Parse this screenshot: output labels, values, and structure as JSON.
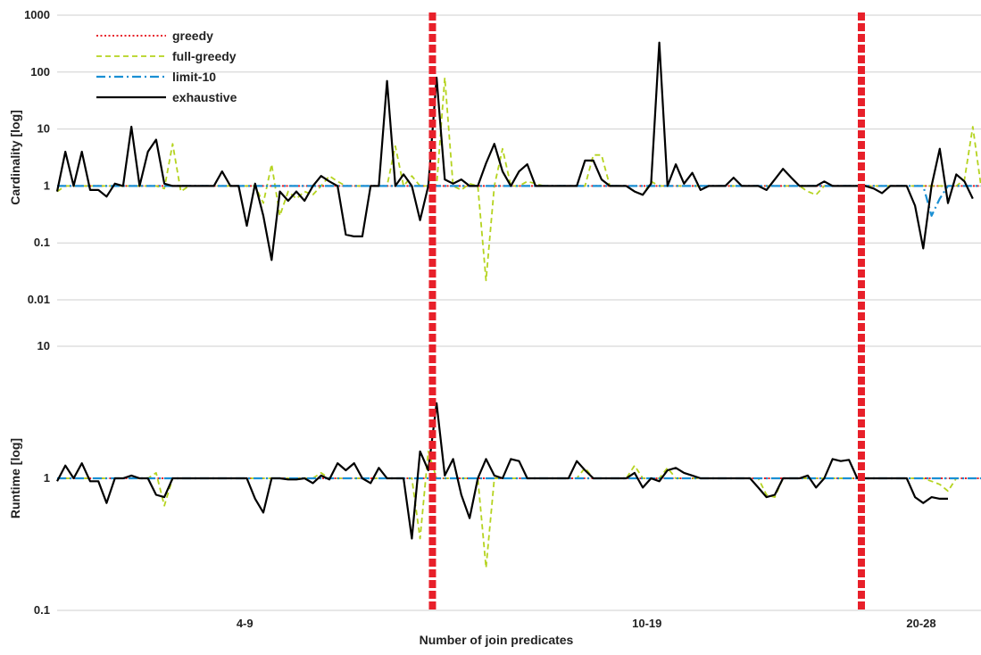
{
  "chart_data": {
    "type": "line",
    "xlabel": "Number of join predicates",
    "group_labels": [
      "4-9",
      "10-19",
      "20-28"
    ],
    "legend": [
      {
        "name": "greedy",
        "color": "#e8202a",
        "style": "dotted"
      },
      {
        "name": "full-greedy",
        "color": "#b5d31f",
        "style": "dashed"
      },
      {
        "name": "limit-10",
        "color": "#1a8fd3",
        "style": "dash-dot"
      },
      {
        "name": "exhaustive",
        "color": "#000000",
        "style": "solid"
      }
    ],
    "x_range": [
      0,
      112
    ],
    "separators_x": [
      45.5,
      97.5
    ],
    "separator_color": "#e8202a",
    "panels": [
      {
        "ylabel": "Cardinality [log]",
        "scale": "log",
        "ylim": [
          0.01,
          1000
        ],
        "yticks": [
          "0.01",
          "0.1",
          "1",
          "10",
          "100",
          "1000"
        ],
        "series": [
          {
            "name": "greedy",
            "values": [
              1,
              1,
              1,
              1,
              1,
              1,
              1,
              1,
              1,
              1,
              1,
              1,
              1,
              1,
              1,
              1,
              1,
              1,
              1,
              1,
              1,
              1,
              1,
              1,
              1,
              1,
              1,
              1,
              1,
              1,
              1,
              1,
              1,
              1,
              1,
              1,
              1,
              1,
              1,
              1,
              1,
              1,
              1,
              1,
              1,
              1,
              1,
              1,
              1,
              1,
              1,
              1,
              1,
              1,
              1,
              1,
              1,
              1,
              1,
              1,
              1,
              1,
              1,
              1,
              1,
              1,
              1,
              1,
              1,
              1,
              1,
              1,
              1,
              1,
              1,
              1,
              1,
              1,
              1,
              1,
              1,
              1,
              1,
              1,
              1,
              1,
              1,
              1,
              1,
              1,
              1,
              1,
              1,
              1,
              1,
              1,
              1,
              1,
              1,
              1,
              1,
              1,
              1,
              1,
              1,
              1,
              1,
              1,
              1,
              1,
              1,
              1,
              1
            ]
          },
          {
            "name": "full-greedy",
            "values": [
              0.8,
              1,
              1,
              1,
              1,
              1,
              1,
              1,
              1,
              1,
              1,
              1,
              1,
              0.9,
              5.5,
              0.8,
              1,
              1,
              1,
              1,
              1,
              1,
              1,
              1,
              1,
              0.5,
              2.4,
              0.3,
              0.8,
              0.6,
              0.8,
              0.7,
              1,
              1.5,
              1.2,
              1,
              1,
              1,
              1,
              1,
              1,
              5,
              1,
              1.5,
              1,
              1,
              1,
              80,
              1,
              0.85,
              1.1,
              1,
              0.022,
              1,
              4.5,
              1,
              1,
              1.2,
              1.1,
              1,
              1,
              1,
              1,
              1,
              1,
              3.5,
              3.5,
              1,
              1,
              1,
              0.8,
              0.7,
              1.2,
              1,
              1,
              1,
              1,
              1,
              1,
              1,
              1,
              1,
              1,
              1,
              1,
              1,
              1,
              1,
              1,
              1,
              1,
              0.8,
              0.7,
              1,
              1,
              1,
              1,
              1,
              1,
              1,
              1,
              1,
              1,
              1,
              1,
              1,
              1,
              1,
              1,
              1,
              1.3,
              11,
              1,
              1
            ]
          },
          {
            "name": "limit-10",
            "values": [
              1,
              1,
              1,
              1,
              1,
              1,
              1,
              1,
              1,
              1,
              1,
              1,
              1,
              1,
              1,
              1,
              1,
              1,
              1,
              1,
              1,
              1,
              1,
              1,
              1,
              1,
              1,
              1,
              1,
              1,
              1,
              1,
              1,
              1,
              1,
              1,
              1,
              1,
              1,
              1,
              1,
              1,
              1,
              1,
              1,
              1,
              1,
              1,
              1,
              1,
              1,
              1,
              1,
              1,
              1,
              1,
              1,
              1,
              1,
              1,
              1,
              1,
              1,
              1,
              1,
              1,
              1,
              1,
              1,
              1,
              1,
              1,
              1,
              1,
              1,
              1,
              1,
              1,
              1,
              1,
              1,
              1,
              1,
              1,
              1,
              1,
              1,
              1,
              1,
              1,
              1,
              1,
              1,
              1,
              1,
              1,
              1,
              1,
              1,
              1,
              1,
              1,
              1,
              1,
              1,
              1,
              0.3,
              0.6,
              1,
              1,
              1,
              1,
              1
            ]
          },
          {
            "name": "exhaustive",
            "values": [
              0.8,
              4,
              1,
              4,
              0.85,
              0.85,
              0.65,
              1.1,
              1,
              11,
              1,
              4,
              6.5,
              1.1,
              1,
              1,
              1,
              1,
              1,
              1,
              1.8,
              1,
              1,
              0.2,
              1.1,
              0.3,
              0.05,
              0.8,
              0.55,
              0.8,
              0.55,
              1,
              1.5,
              1.2,
              1,
              0.14,
              0.13,
              0.13,
              1,
              1,
              70,
              1,
              1.6,
              1,
              0.25,
              1,
              80,
              1.3,
              1.1,
              1.3,
              1,
              1,
              2.5,
              5.5,
              1.8,
              1,
              1.8,
              2.4,
              1,
              1,
              1,
              1,
              1,
              1,
              2.8,
              2.8,
              1.3,
              1,
              1,
              1,
              0.8,
              0.7,
              1.1,
              330,
              1,
              2.4,
              1.1,
              1.7,
              0.85,
              1,
              1,
              1,
              1.4,
              1,
              1,
              1,
              0.85,
              1.3,
              2,
              1.4,
              1,
              1,
              1,
              1.2,
              1,
              1,
              1,
              1,
              1,
              0.9,
              0.75,
              1,
              1,
              1,
              0.45,
              0.08,
              1,
              4.5,
              0.5,
              1.6,
              1.2,
              0.6
            ]
          }
        ]
      },
      {
        "ylabel": "Runtime [log]",
        "scale": "log",
        "ylim": [
          0.1,
          10
        ],
        "yticks": [
          "0.1",
          "1",
          "10"
        ],
        "series": [
          {
            "name": "greedy",
            "values": [
              1,
              1,
              1,
              1,
              1,
              1,
              1,
              1,
              1,
              1,
              1,
              1,
              1,
              1,
              1,
              1,
              1,
              1,
              1,
              1,
              1,
              1,
              1,
              1,
              1,
              1,
              1,
              1,
              1,
              1,
              1,
              1,
              1,
              1,
              1,
              1,
              1,
              1,
              1,
              1,
              1,
              1,
              1,
              1,
              1,
              1,
              1,
              1,
              1,
              1,
              1,
              1,
              1,
              1,
              1,
              1,
              1,
              1,
              1,
              1,
              1,
              1,
              1,
              1,
              1,
              1,
              1,
              1,
              1,
              1,
              1,
              1,
              1,
              1,
              1,
              1,
              1,
              1,
              1,
              1,
              1,
              1,
              1,
              1,
              1,
              1,
              1,
              1,
              1,
              1,
              1,
              1,
              1,
              1,
              1,
              1,
              1,
              1,
              1,
              1,
              1,
              1,
              1,
              1,
              1,
              1,
              1,
              1,
              1,
              1,
              1,
              1,
              1
            ]
          },
          {
            "name": "full-greedy",
            "values": [
              1,
              1,
              1,
              1,
              1,
              1,
              1,
              1,
              1,
              1,
              1,
              1,
              1.1,
              0.62,
              1,
              1,
              1,
              1,
              1,
              1,
              1,
              1,
              1,
              1,
              1,
              1,
              1,
              1,
              1,
              1,
              1,
              1,
              1.1,
              1,
              1,
              1,
              1,
              1,
              1,
              1,
              1,
              1,
              1,
              1,
              0.35,
              1.6,
              1,
              1,
              1,
              1,
              1,
              1,
              0.21,
              1,
              1,
              1,
              1,
              1,
              1,
              1,
              1,
              1,
              1,
              1,
              1.2,
              1,
              1,
              1,
              1,
              1,
              1.25,
              1,
              1,
              1,
              1.2,
              1,
              1,
              1,
              1,
              1,
              1,
              1,
              1,
              1,
              1,
              1,
              0.75,
              0.72,
              1,
              1,
              1,
              1,
              1,
              1,
              1,
              1,
              1,
              1,
              1,
              1,
              1,
              1,
              1,
              1,
              1,
              1,
              0.95,
              0.9,
              0.8,
              1
            ]
          },
          {
            "name": "limit-10",
            "values": [
              1,
              1,
              1,
              1,
              1,
              1,
              1,
              1,
              1,
              1,
              1,
              1,
              1,
              1,
              1,
              1,
              1,
              1,
              1,
              1,
              1,
              1,
              1,
              1,
              1,
              1,
              1,
              1,
              1,
              1,
              1,
              1,
              1,
              1,
              1,
              1,
              1,
              1,
              1,
              1,
              1,
              1,
              1,
              1,
              1,
              1,
              1,
              1,
              1,
              1,
              1,
              1,
              1,
              1,
              1,
              1,
              1,
              1,
              1,
              1,
              1,
              1,
              1,
              1,
              1,
              1,
              1,
              1,
              1,
              1,
              1,
              1,
              1,
              1,
              1,
              1,
              1,
              1,
              1,
              1,
              1,
              1,
              1,
              1,
              1,
              1,
              1,
              1,
              1,
              1,
              1,
              1,
              1,
              1,
              1,
              1,
              1,
              1,
              1,
              1,
              1,
              1,
              1,
              1,
              1,
              1,
              1,
              1,
              1,
              1,
              1,
              1,
              1
            ]
          },
          {
            "name": "exhaustive",
            "values": [
              0.95,
              1.25,
              1,
              1.3,
              0.95,
              0.95,
              0.65,
              1,
              1,
              1.05,
              1,
              1,
              0.75,
              0.72,
              1,
              1,
              1,
              1,
              1,
              1,
              1,
              1,
              1,
              1,
              0.7,
              0.55,
              1,
              1,
              0.98,
              0.98,
              1,
              0.92,
              1.05,
              0.98,
              1.3,
              1.15,
              1.3,
              1,
              0.92,
              1.2,
              1,
              1,
              1,
              0.35,
              1.6,
              1.15,
              3.7,
              1.05,
              1.4,
              0.75,
              0.5,
              1,
              1.4,
              1.05,
              1,
              1.4,
              1.35,
              1,
              1,
              1,
              1,
              1,
              1,
              1.35,
              1.15,
              1,
              1,
              1,
              1,
              1,
              1.1,
              0.85,
              1,
              0.95,
              1.15,
              1.2,
              1.1,
              1.05,
              1,
              1,
              1,
              1,
              1,
              1,
              1,
              0.85,
              0.72,
              0.75,
              1,
              1,
              1,
              1.05,
              0.85,
              1,
              1.4,
              1.35,
              1.38,
              1,
              1,
              1,
              1,
              1,
              1,
              1,
              0.72,
              0.65,
              0.72,
              0.7,
              0.7
            ]
          }
        ]
      }
    ]
  }
}
